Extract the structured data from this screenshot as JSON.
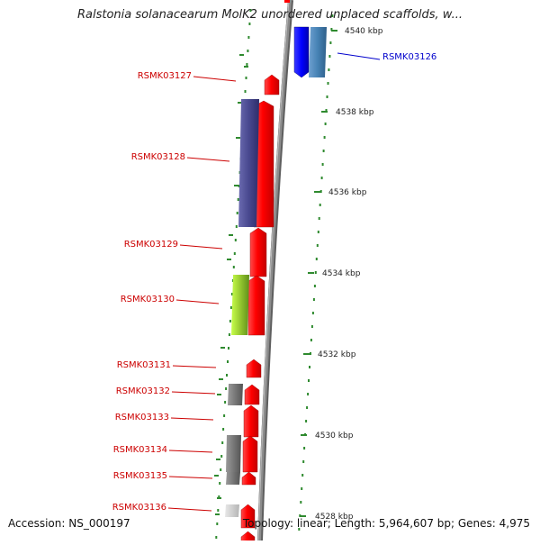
{
  "title": "Ralstonia solanacearum MolK2 unordered unplaced scaffolds, w...",
  "footer": {
    "accession": "Accession: NS_000197",
    "summary": "Topology: linear; Length: 5,964,607 bp; Genes: 4,975"
  },
  "scale": {
    "tick_color": "#2f8a2f",
    "labels": [
      "4540 kbp",
      "4538 kbp",
      "4536 kbp",
      "4534 kbp",
      "4532 kbp",
      "4530 kbp",
      "4528 kbp"
    ]
  },
  "colors": {
    "minus_strand_gene": "#ff0000",
    "minus_strand_label": "#cc0000",
    "plus_strand_label": "#0000cc",
    "backbone": "#8c8c8c"
  },
  "genes": [
    {
      "id": "RSMK03126",
      "strand": "plus",
      "label_color": "#0000cc"
    },
    {
      "id": "RSMK03127",
      "strand": "minus",
      "label_color": "#cc0000"
    },
    {
      "id": "RSMK03128",
      "strand": "minus",
      "label_color": "#cc0000"
    },
    {
      "id": "RSMK03129",
      "strand": "minus",
      "label_color": "#cc0000"
    },
    {
      "id": "RSMK03130",
      "strand": "minus",
      "label_color": "#cc0000"
    },
    {
      "id": "RSMK03131",
      "strand": "minus",
      "label_color": "#cc0000"
    },
    {
      "id": "RSMK03132",
      "strand": "minus",
      "label_color": "#cc0000"
    },
    {
      "id": "RSMK03133",
      "strand": "minus",
      "label_color": "#cc0000"
    },
    {
      "id": "RSMK03134",
      "strand": "minus",
      "label_color": "#cc0000"
    },
    {
      "id": "RSMK03135",
      "strand": "minus",
      "label_color": "#cc0000"
    },
    {
      "id": "RSMK03136",
      "strand": "minus",
      "label_color": "#cc0000"
    }
  ]
}
